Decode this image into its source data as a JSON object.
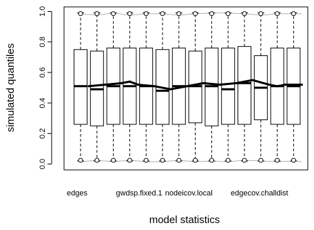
{
  "chart_data": {
    "type": "boxplot",
    "xlabel": "model statistics",
    "ylabel": "simulated quantiles",
    "ylim": [
      0,
      1
    ],
    "yticks": [
      "0.0",
      "0.2",
      "0.4",
      "0.6",
      "0.8",
      "1.0"
    ],
    "x_tick_labels": [
      {
        "index": 0,
        "label": "edges"
      },
      {
        "index": 3,
        "label": "gwdsp.fixed.1"
      },
      {
        "index": 6,
        "label": "nodeicov.local"
      },
      {
        "index": 10,
        "label": "edgecov.challdist"
      }
    ],
    "boxes": [
      {
        "whisker_low": 0.02,
        "q1": 0.26,
        "median": 0.51,
        "q3": 0.75,
        "whisker_high": 0.99
      },
      {
        "whisker_low": 0.02,
        "q1": 0.25,
        "median": 0.49,
        "q3": 0.74,
        "whisker_high": 0.99
      },
      {
        "whisker_low": 0.02,
        "q1": 0.26,
        "median": 0.51,
        "q3": 0.76,
        "whisker_high": 0.99
      },
      {
        "whisker_low": 0.02,
        "q1": 0.26,
        "median": 0.51,
        "q3": 0.76,
        "whisker_high": 0.99
      },
      {
        "whisker_low": 0.02,
        "q1": 0.26,
        "median": 0.51,
        "q3": 0.76,
        "whisker_high": 0.99
      },
      {
        "whisker_low": 0.02,
        "q1": 0.26,
        "median": 0.48,
        "q3": 0.75,
        "whisker_high": 0.99
      },
      {
        "whisker_low": 0.02,
        "q1": 0.26,
        "median": 0.51,
        "q3": 0.76,
        "whisker_high": 0.99
      },
      {
        "whisker_low": 0.02,
        "q1": 0.27,
        "median": 0.51,
        "q3": 0.74,
        "whisker_high": 0.99
      },
      {
        "whisker_low": 0.02,
        "q1": 0.25,
        "median": 0.51,
        "q3": 0.76,
        "whisker_high": 0.99
      },
      {
        "whisker_low": 0.02,
        "q1": 0.26,
        "median": 0.49,
        "q3": 0.76,
        "whisker_high": 0.99
      },
      {
        "whisker_low": 0.02,
        "q1": 0.26,
        "median": 0.53,
        "q3": 0.77,
        "whisker_high": 0.99
      },
      {
        "whisker_low": 0.02,
        "q1": 0.29,
        "median": 0.5,
        "q3": 0.71,
        "whisker_high": 0.99
      },
      {
        "whisker_low": 0.02,
        "q1": 0.26,
        "median": 0.51,
        "q3": 0.76,
        "whisker_high": 0.99
      },
      {
        "whisker_low": 0.02,
        "q1": 0.26,
        "median": 0.51,
        "q3": 0.76,
        "whisker_high": 0.99
      }
    ],
    "observed_line": [
      0.51,
      0.52,
      0.53,
      0.54,
      0.52,
      0.51,
      0.49,
      0.5,
      0.53,
      0.52,
      0.53,
      0.55,
      0.52,
      0.51,
      0.52,
      0.52
    ],
    "observed_line_x": [
      0.5,
      1.5,
      2.5,
      3.0,
      3.5,
      4.5,
      5.5,
      6.0,
      7.5,
      8.5,
      9.5,
      10.5,
      11.5,
      12.0,
      12.5,
      13.5
    ],
    "upper_gray_line": [
      0.985,
      0.975,
      0.99,
      0.975,
      0.985,
      0.985,
      0.975,
      0.985,
      0.99,
      0.99,
      0.985,
      0.975,
      0.985,
      0.985,
      0.985,
      0.985
    ],
    "lower_gray_line": [
      0.015,
      0.025,
      0.015,
      0.025,
      0.015,
      0.015,
      0.025,
      0.015,
      0.02,
      0.015,
      0.025,
      0.02,
      0.015,
      0.02,
      0.015,
      0.015
    ],
    "gray_line_x": [
      0.0,
      1.0,
      2.0,
      3.0,
      4.0,
      5.0,
      6.0,
      7.0,
      8.0,
      9.0,
      10.0,
      11.0,
      12.0,
      13.0,
      13.5,
      13.5
    ],
    "colors": {
      "box_stroke": "#000000",
      "median": "#000000",
      "observed": "#000000",
      "gray_lines": "#b0b0b0"
    }
  }
}
